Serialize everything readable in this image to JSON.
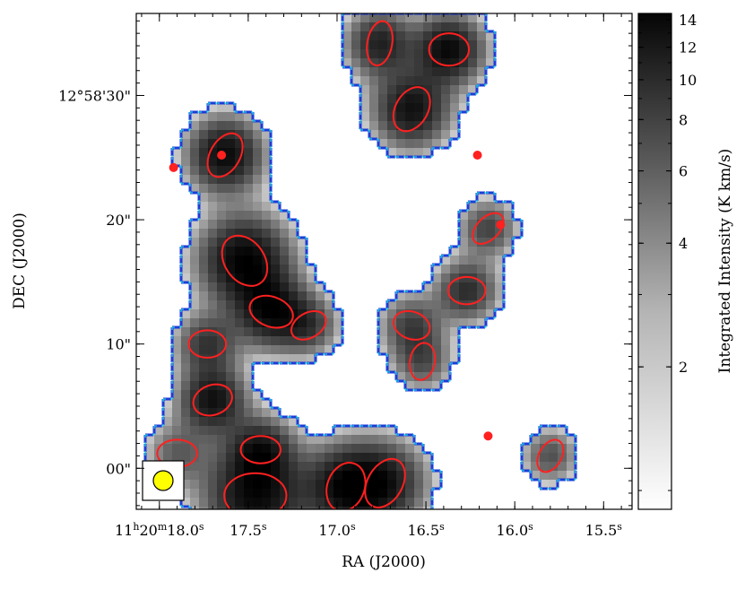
{
  "chart_data": {
    "type": "heatmap",
    "title": "",
    "xlabel": "RA (J2000)",
    "ylabel": "DEC (J2000)",
    "x_ticks": [
      {
        "value_s": 18.0,
        "label": "11h20m18.0s",
        "parts": [
          "11",
          "h",
          "20",
          "m",
          "18.0",
          "s"
        ]
      },
      {
        "value_s": 17.5,
        "label": "17.5s",
        "parts": [
          "17.5",
          "s"
        ]
      },
      {
        "value_s": 17.0,
        "label": "17.0s",
        "parts": [
          "17.0",
          "s"
        ]
      },
      {
        "value_s": 16.5,
        "label": "16.5s",
        "parts": [
          "16.5",
          "s"
        ]
      },
      {
        "value_s": 16.0,
        "label": "16.0s",
        "parts": [
          "16.0",
          "s"
        ]
      },
      {
        "value_s": 15.5,
        "label": "15.5s",
        "parts": [
          "15.5",
          "s"
        ]
      }
    ],
    "xlim_s": [
      18.13,
      15.34
    ],
    "y_ticks": [
      {
        "value_as": 0,
        "label": "00\""
      },
      {
        "value_as": 10,
        "label": "10\""
      },
      {
        "value_as": 20,
        "label": "20\""
      },
      {
        "value_as": 30,
        "label": "12°58'30\""
      }
    ],
    "ylim_as": [
      -3.3,
      36.6
    ],
    "colorbar": {
      "label": "Integrated Intensity (K km/s)",
      "scale": "log",
      "range": [
        0.9,
        14.5
      ],
      "ticks": [
        2,
        4,
        6,
        8,
        10,
        12,
        14
      ],
      "colormap": "gray_r"
    },
    "clumps": [
      {
        "x": 17.63,
        "y": 25.2,
        "a": 1.9,
        "b": 1.2,
        "pa": 60,
        "peak": 13
      },
      {
        "x": 17.52,
        "y": 16.7,
        "a": 2.2,
        "b": 1.6,
        "pa": -55,
        "peak": 14
      },
      {
        "x": 17.37,
        "y": 12.6,
        "a": 1.8,
        "b": 1.2,
        "pa": -20,
        "peak": 12
      },
      {
        "x": 17.46,
        "y": -2.2,
        "a": 2.5,
        "b": 1.8,
        "pa": 0,
        "peak": 13
      },
      {
        "x": 17.7,
        "y": 5.5,
        "a": 1.6,
        "b": 1.2,
        "pa": 20,
        "peak": 12
      },
      {
        "x": 16.95,
        "y": -1.5,
        "a": 2.0,
        "b": 1.5,
        "pa": 70,
        "peak": 12
      },
      {
        "x": 16.73,
        "y": -1.2,
        "a": 2.1,
        "b": 1.4,
        "pa": 60,
        "peak": 10
      },
      {
        "x": 16.37,
        "y": 33.7,
        "a": 1.6,
        "b": 1.3,
        "pa": 0,
        "peak": 13
      },
      {
        "x": 16.76,
        "y": 34.2,
        "a": 1.8,
        "b": 1.0,
        "pa": 80,
        "peak": 10
      },
      {
        "x": 16.58,
        "y": 28.9,
        "a": 1.9,
        "b": 1.3,
        "pa": 60,
        "peak": 12
      },
      {
        "x": 16.27,
        "y": 14.3,
        "a": 1.5,
        "b": 1.1,
        "pa": 0,
        "peak": 9
      },
      {
        "x": 17.16,
        "y": 11.5,
        "a": 1.5,
        "b": 1.0,
        "pa": 30,
        "peak": 7
      },
      {
        "x": 17.73,
        "y": 10.0,
        "a": 1.5,
        "b": 1.1,
        "pa": 0,
        "peak": 8
      },
      {
        "x": 16.52,
        "y": 8.6,
        "a": 1.5,
        "b": 1.0,
        "pa": 80,
        "peak": 6
      },
      {
        "x": 16.58,
        "y": 11.5,
        "a": 1.5,
        "b": 1.1,
        "pa": -20,
        "peak": 7
      },
      {
        "x": 15.8,
        "y": 1.0,
        "a": 1.4,
        "b": 0.9,
        "pa": 60,
        "peak": 6
      },
      {
        "x": 16.15,
        "y": 19.3,
        "a": 1.5,
        "b": 0.9,
        "pa": 45,
        "peak": 7
      },
      {
        "x": 17.43,
        "y": 1.5,
        "a": 1.6,
        "b": 1.1,
        "pa": 0,
        "peak": 9
      },
      {
        "x": 17.9,
        "y": 1.2,
        "a": 1.6,
        "b": 1.1,
        "pa": 0,
        "peak": 5
      }
    ],
    "point_sources": [
      {
        "x": 17.92,
        "y": 24.2
      },
      {
        "x": 17.65,
        "y": 25.2
      },
      {
        "x": 16.21,
        "y": 25.2
      },
      {
        "x": 16.08,
        "y": 19.6
      },
      {
        "x": 16.15,
        "y": 2.6
      }
    ],
    "beam": {
      "label": "beam",
      "color": "#ffff00"
    },
    "colors": {
      "ellipse": "#ff2020",
      "contour_outer": "#1f3bd6",
      "contour_inner": "#20d0e8",
      "marker": "#ff2020"
    }
  }
}
